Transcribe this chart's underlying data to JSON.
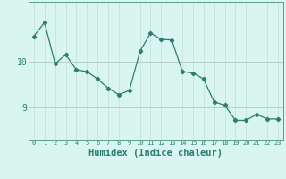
{
  "x": [
    0,
    1,
    2,
    3,
    4,
    5,
    6,
    7,
    8,
    9,
    10,
    11,
    12,
    13,
    14,
    15,
    16,
    17,
    18,
    19,
    20,
    21,
    22,
    23
  ],
  "y": [
    10.55,
    10.85,
    9.95,
    10.15,
    9.82,
    9.78,
    9.62,
    9.42,
    9.28,
    9.37,
    10.22,
    10.62,
    10.48,
    10.47,
    9.78,
    9.75,
    9.62,
    9.12,
    9.05,
    8.72,
    8.72,
    8.85,
    8.75,
    8.75
  ],
  "line_color": "#2e7d6e",
  "marker": "D",
  "marker_size": 2.2,
  "bg_color": "#d8f5f0",
  "grid_color_major": "#b8cdc8",
  "grid_color_minor": "#c8ddd8",
  "xlabel": "Humidex (Indice chaleur)",
  "xlabel_fontsize": 7.5,
  "yticks": [
    9,
    10
  ],
  "ylim": [
    8.3,
    11.3
  ],
  "xlim": [
    -0.5,
    23.5
  ],
  "spine_color": "#5a9e90",
  "xtick_fontsize": 5.0,
  "ytick_fontsize": 7.0
}
